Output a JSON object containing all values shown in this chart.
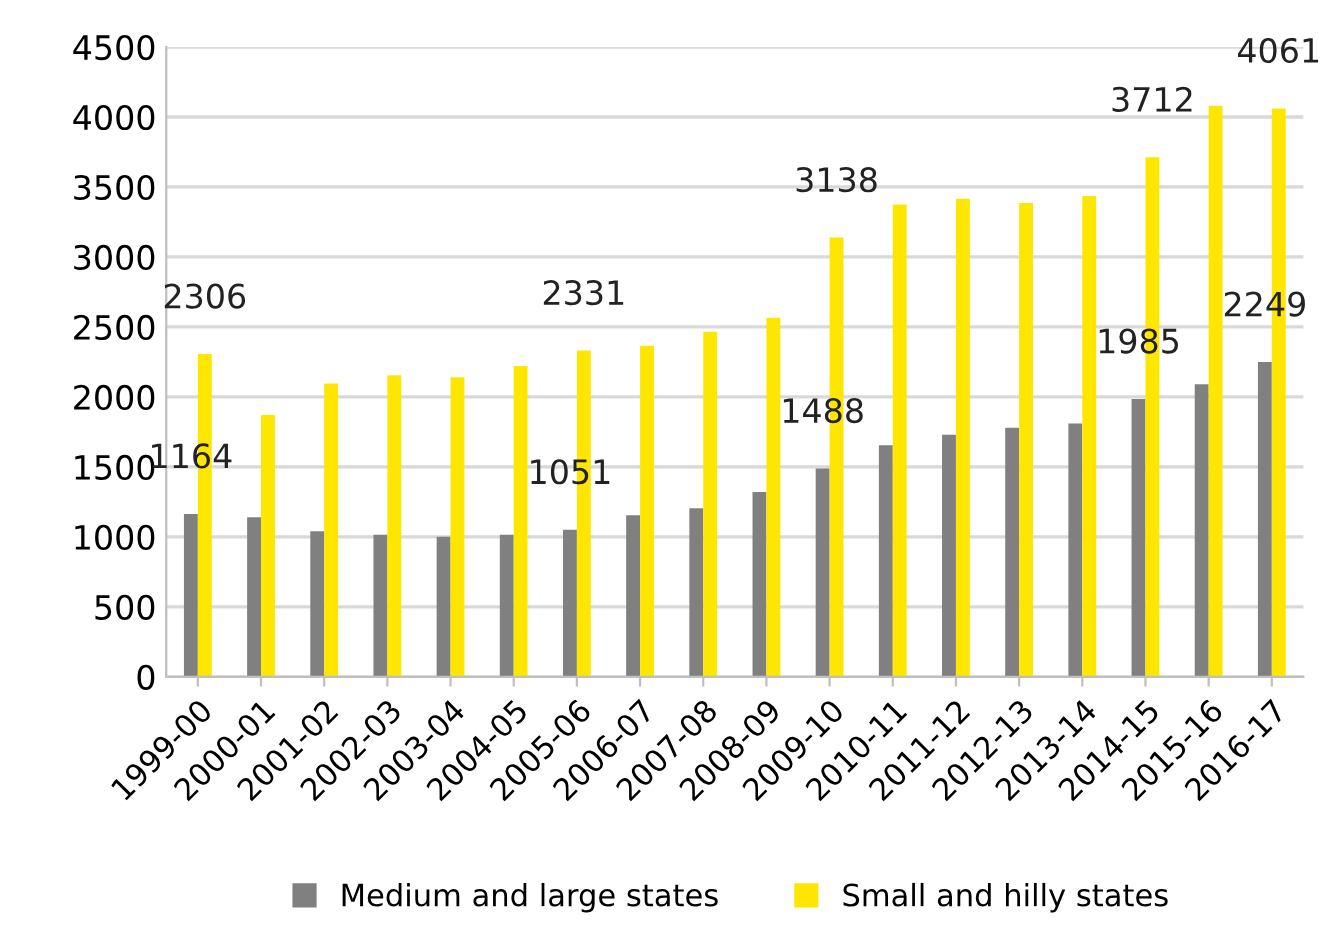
{
  "chart_data": {
    "type": "bar",
    "categories": [
      "1999-00",
      "2000-01",
      "2001-02",
      "2002-03",
      "2003-04",
      "2004-05",
      "2005-06",
      "2006-07",
      "2007-08",
      "2008-09",
      "2009-10",
      "2010-11",
      "2011-12",
      "2012-13",
      "2013-14",
      "2014-15",
      "2015-16",
      "2016-17"
    ],
    "series": [
      {
        "name": "Medium and large states",
        "color": "#808080",
        "values": [
          1164,
          1140,
          1040,
          1015,
          1000,
          1015,
          1051,
          1155,
          1205,
          1320,
          1488,
          1655,
          1730,
          1780,
          1810,
          1985,
          2090,
          2249
        ],
        "value_labels": [
          "1164",
          null,
          null,
          null,
          null,
          null,
          "1051",
          null,
          null,
          null,
          "1488",
          null,
          null,
          null,
          null,
          "1985",
          null,
          "2249"
        ]
      },
      {
        "name": "Small and hilly states",
        "color": "#ffe600",
        "values": [
          2306,
          1870,
          2095,
          2155,
          2140,
          2220,
          2331,
          2365,
          2465,
          2565,
          3138,
          3375,
          3415,
          3385,
          3435,
          3712,
          4080,
          4061
        ],
        "value_labels": [
          "2306",
          null,
          null,
          null,
          null,
          null,
          "2331",
          null,
          null,
          null,
          "3138",
          null,
          null,
          null,
          null,
          "3712",
          null,
          "4061"
        ]
      }
    ],
    "ylim": [
      0,
      4500
    ],
    "yticks": [
      0,
      500,
      1000,
      1500,
      2000,
      2500,
      3000,
      3500,
      4000,
      4500
    ],
    "grid": "y",
    "legend": "bottom"
  }
}
